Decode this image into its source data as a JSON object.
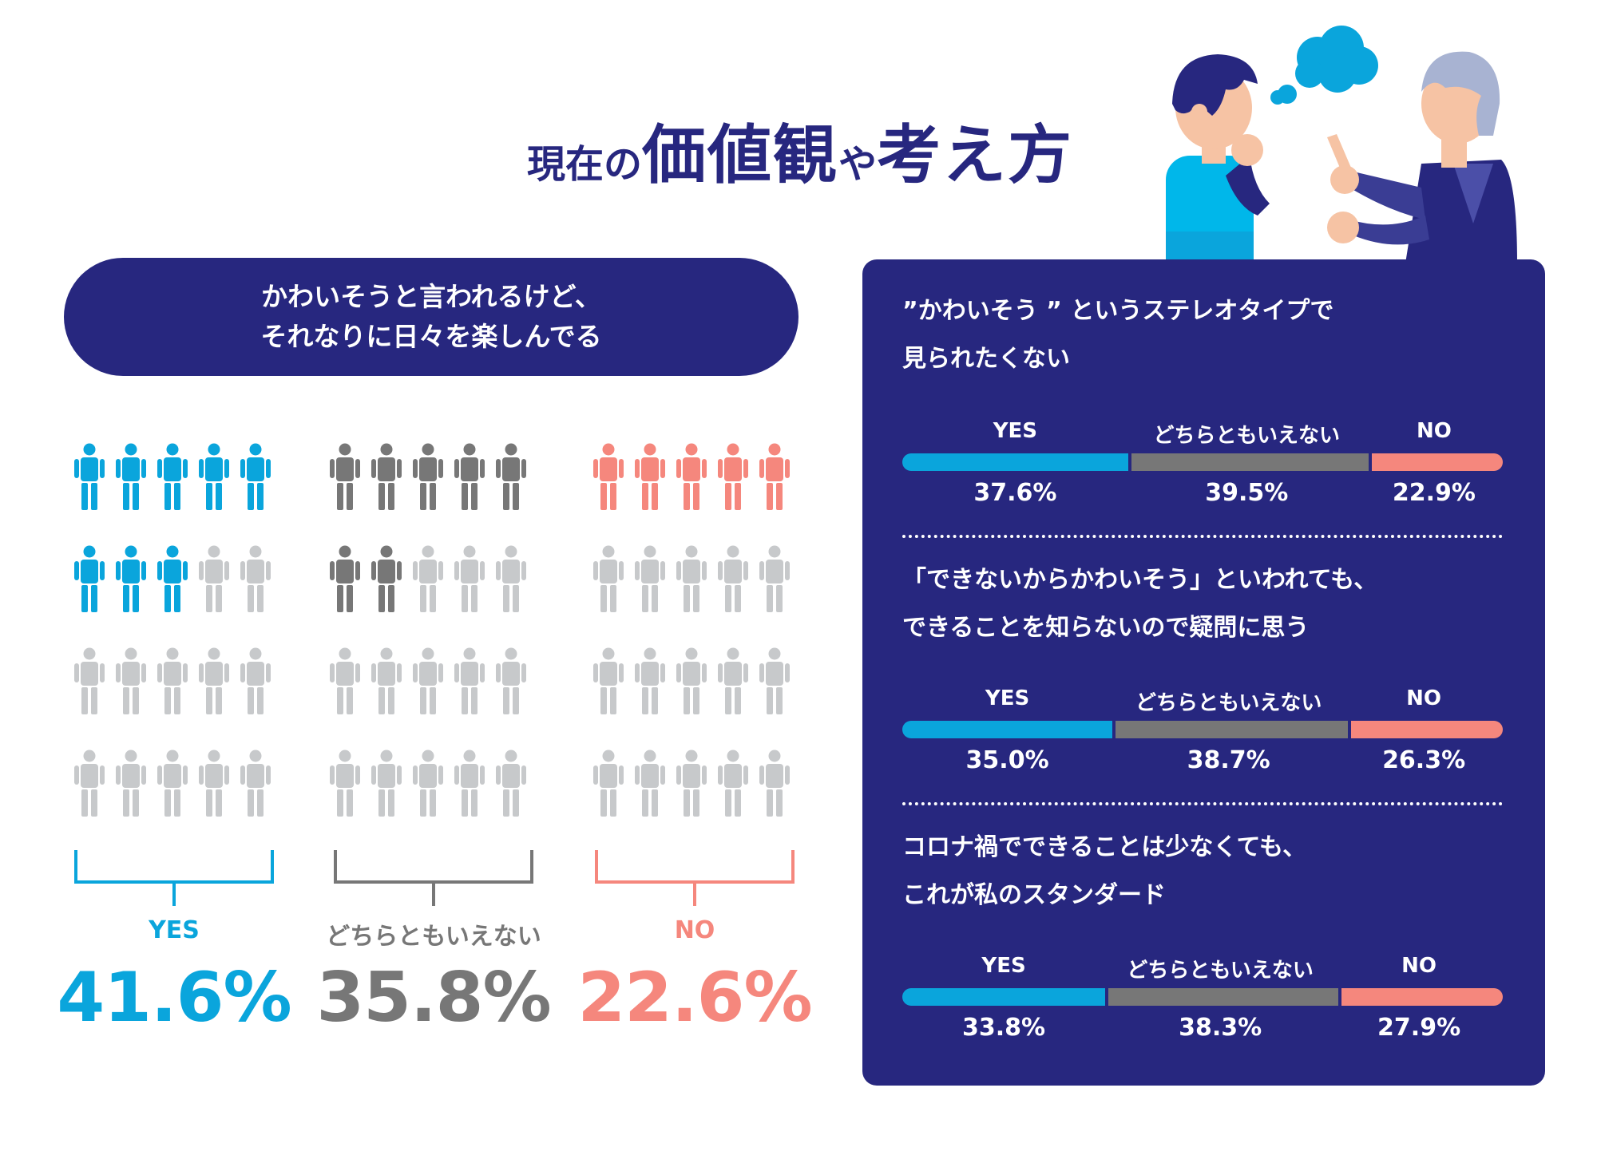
{
  "title": {
    "part1": "現在の",
    "part2": "価値観",
    "part3": "や",
    "part4": "考え方"
  },
  "colors": {
    "navy": "#27277f",
    "yes": "#0aa5dc",
    "neutral": "#777777",
    "no": "#f5877d",
    "empty": "#c7c9cb"
  },
  "left": {
    "pill_line1": "かわいそうと言われるけど、",
    "pill_line2": "それなりに日々を楽しんでる",
    "categories": [
      {
        "key": "yes",
        "label": "YES",
        "value_text": "41.6%",
        "filled_icons": 8,
        "total_icons": 20,
        "color": "#0aa5dc"
      },
      {
        "key": "neutral",
        "label": "どちらともいえない",
        "value_text": "35.8%",
        "filled_icons": 7,
        "total_icons": 20,
        "color": "#777777"
      },
      {
        "key": "no",
        "label": "NO",
        "value_text": "22.6%",
        "filled_icons": 5,
        "total_icons": 20,
        "color": "#f5877d"
      }
    ]
  },
  "chart_data": [
    {
      "type": "pictograph",
      "title": "かわいそうと言われるけど、それなりに日々を楽しんでる",
      "categories": [
        "YES",
        "どちらともいえない",
        "NO"
      ],
      "values": [
        41.6,
        35.8,
        22.6
      ],
      "unit": "%"
    },
    {
      "type": "bar",
      "stacked": true,
      "title": "”かわいそう ” というステレオタイプで見られたくない",
      "categories": [
        "YES",
        "どちらともいえない",
        "NO"
      ],
      "values": [
        37.6,
        39.5,
        22.9
      ],
      "unit": "%"
    },
    {
      "type": "bar",
      "stacked": true,
      "title": "「できないからかわいそう」といわれても、できることを知らないので疑問に思う",
      "categories": [
        "YES",
        "どちらともいえない",
        "NO"
      ],
      "values": [
        35.0,
        38.7,
        26.3
      ],
      "unit": "%"
    },
    {
      "type": "bar",
      "stacked": true,
      "title": "コロナ禍でできることは少なくても、これが私のスタンダード",
      "categories": [
        "YES",
        "どちらともいえない",
        "NO"
      ],
      "values": [
        33.8,
        38.3,
        27.9
      ],
      "unit": "%"
    }
  ],
  "right": {
    "questions": [
      {
        "line1": "”かわいそう ” というステレオタイプで",
        "line2": "見られたくない",
        "labels": [
          "YES",
          "どちらともいえない",
          "NO"
        ],
        "values": [
          37.6,
          39.5,
          22.9
        ],
        "texts": [
          "37.6%",
          "39.5%",
          "22.9%"
        ]
      },
      {
        "line1": "「できないからかわいそう」といわれても、",
        "line2": "できることを知らないので疑問に思う",
        "labels": [
          "YES",
          "どちらともいえない",
          "NO"
        ],
        "values": [
          35.0,
          38.7,
          26.3
        ],
        "texts": [
          "35.0%",
          "38.7%",
          "26.3%"
        ]
      },
      {
        "line1": "コロナ禍でできることは少なくても、",
        "line2": "これが私のスタンダード",
        "labels": [
          "YES",
          "どちらともいえない",
          "NO"
        ],
        "values": [
          33.8,
          38.3,
          27.9
        ],
        "texts": [
          "33.8%",
          "38.3%",
          "27.9%"
        ]
      }
    ]
  }
}
